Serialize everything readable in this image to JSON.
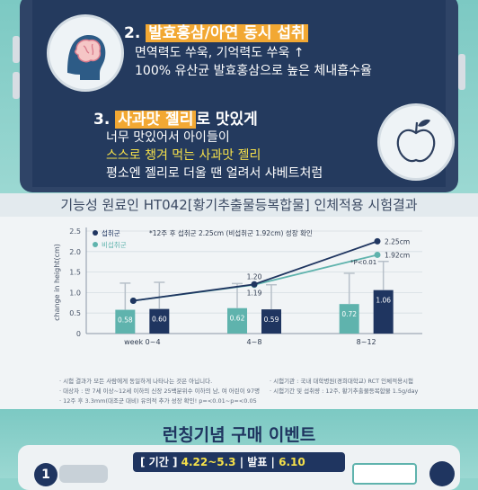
{
  "features": [
    {
      "number": "2.",
      "title_highlight": "발효홍삼/아연 동시 섭취",
      "title_rest": "",
      "lines": [
        "면역력도 쑤욱, 기억력도 쑤욱 ↑",
        "100% 유산균 발효홍삼으로 높은 체내흡수율"
      ],
      "icon": "brain-icon"
    },
    {
      "number": "3.",
      "title_highlight": "사과맛 젤리",
      "title_rest": "로 맛있게",
      "lines": [
        "너무 맛있어서 아이들이",
        "스스로 챙겨 먹는 사과맛 젤리",
        "평소엔 젤리로 더울 땐 얼려서 샤베트처럼"
      ],
      "icon": "apple-icon"
    }
  ],
  "results": {
    "title": "기능성 원료인 HT042[황기추출물등복합물] 인체적용 시험결과",
    "notes": [
      "· 시험 결과가 모든 사람에게 동일하게 나타나는 것은 아닙니다.",
      "· 대상자 : 만 7세 이상~12세 이하의 신장 25백분위수 이하의 남, 여 어린이 97명",
      "· 12주 후 3.3mm(대조군 대비) 유의적 추가 성장 확인! p=<0.01~p=<0.05",
      "· 시험기관 : 국내 대학병원(경희대학교) RCT 인체적용시험",
      "· 시험기간 및 섭취량 : 12주, 황기추출물등복합물 1.5g/day"
    ]
  },
  "chart_data": {
    "type": "bar",
    "ylabel": "change in height(cm)",
    "ylim": [
      0,
      2.5
    ],
    "yticks": [
      "0",
      "0.5",
      "1.0",
      "1.5",
      "2.0",
      "2.5"
    ],
    "categories": [
      "week 0~4",
      "4~8",
      "8~12"
    ],
    "legend_placement": "top-left",
    "annotation_top": "*12주 후 섭취군 2.25cm (비섭취군 1.92cm) 성장 확인",
    "significance": "*P<0.01",
    "series": [
      {
        "name": "섭취군",
        "bar_values": [
          0.6,
          0.59,
          1.06
        ],
        "bar_labels": [
          "0.60",
          "0.59",
          "1.06"
        ],
        "bar_error": [
          0.65,
          0.6,
          0.7
        ],
        "cumulative": [
          0.8,
          1.2,
          2.25
        ],
        "cumulative_labels": [
          "",
          "1.20",
          "2.25cm"
        ],
        "color": "#1f3560"
      },
      {
        "name": "비섭취군",
        "bar_values": [
          0.58,
          0.62,
          0.72
        ],
        "bar_labels": [
          "0.58",
          "0.62",
          "0.72"
        ],
        "bar_error": [
          0.65,
          0.6,
          0.75
        ],
        "cumulative": [
          0.8,
          1.19,
          1.92
        ],
        "cumulative_labels": [
          "",
          "1.19",
          "1.92cm"
        ],
        "color": "#5fb3ad"
      }
    ]
  },
  "event": {
    "title": "런칭기념 구매 이벤트",
    "period_label": "기간",
    "period_value": "4.22~5.3",
    "announce_label": "발표",
    "announce_value": "6.10",
    "badge": "1"
  }
}
